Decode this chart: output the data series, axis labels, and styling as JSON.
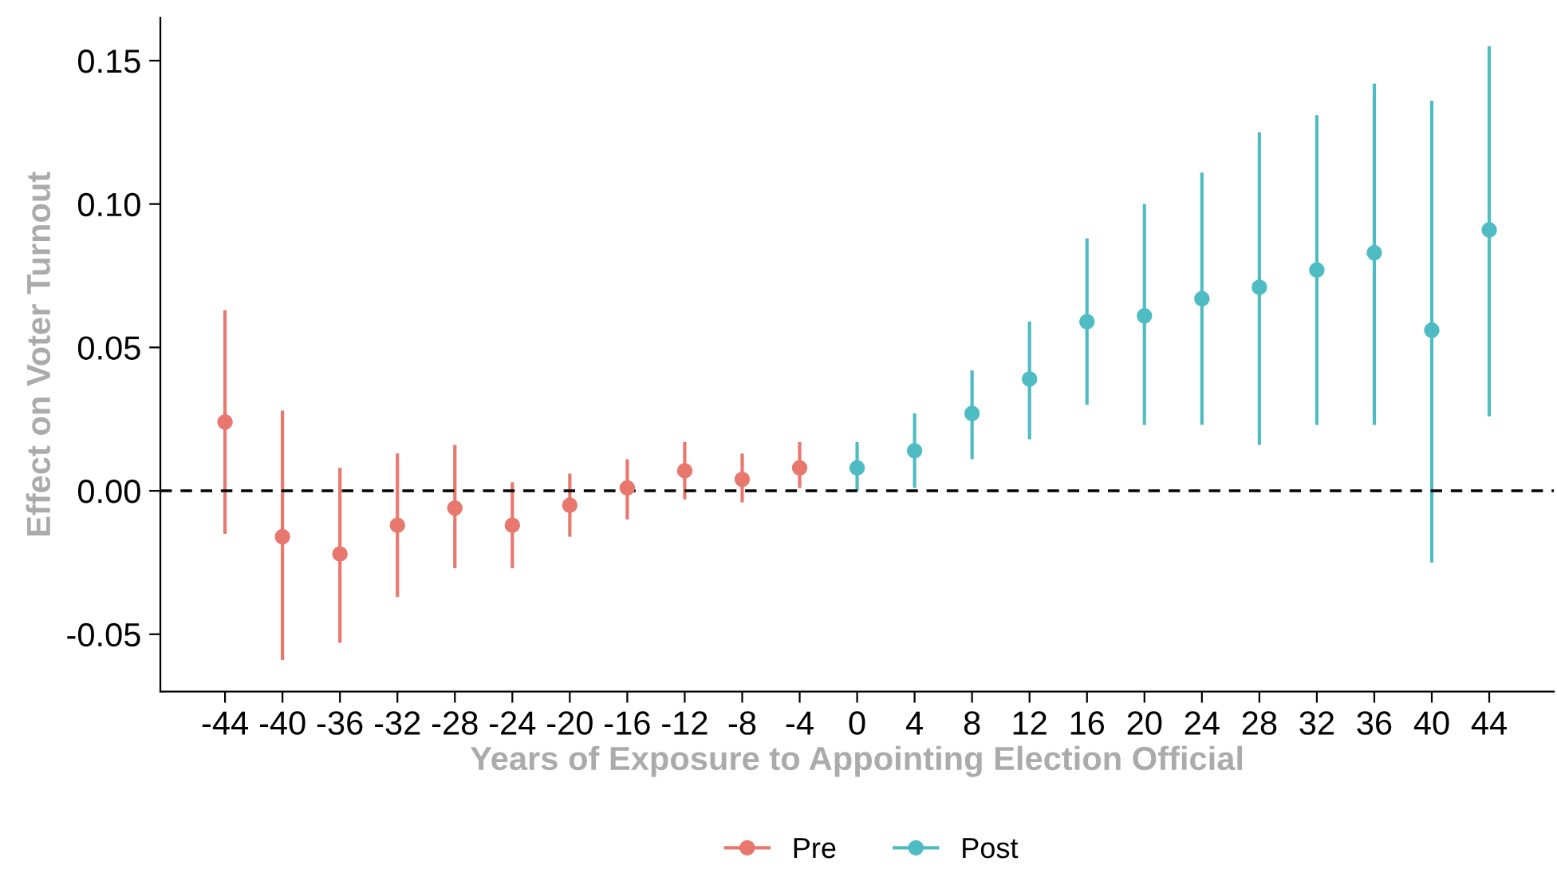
{
  "chart_data": {
    "type": "scatter",
    "xlabel": "Years of Exposure to Appointing Election Official",
    "ylabel": "Effect on Voter Turnout",
    "series": [
      {
        "name": "Pre",
        "color": "#e8776e",
        "x": [
          -44,
          -40,
          -36,
          -32,
          -28,
          -24,
          -20,
          -16,
          -12,
          -8,
          -4
        ],
        "values": [
          0.024,
          -0.016,
          -0.022,
          -0.012,
          -0.006,
          -0.012,
          -0.005,
          0.001,
          0.007,
          0.004,
          0.008
        ],
        "errors": [
          [
            -0.015,
            0.063
          ],
          [
            -0.059,
            0.028
          ],
          [
            -0.053,
            0.008
          ],
          [
            -0.037,
            0.013
          ],
          [
            -0.027,
            0.016
          ],
          [
            -0.027,
            0.003
          ],
          [
            -0.016,
            0.006
          ],
          [
            -0.01,
            0.011
          ],
          [
            -0.003,
            0.017
          ],
          [
            -0.004,
            0.013
          ],
          [
            0.001,
            0.017
          ]
        ]
      },
      {
        "name": "Post",
        "color": "#4fbcc4",
        "x": [
          0,
          4,
          8,
          12,
          16,
          20,
          24,
          28,
          32,
          36,
          40,
          44
        ],
        "values": [
          0.008,
          0.014,
          0.027,
          0.039,
          0.059,
          0.061,
          0.067,
          0.071,
          0.077,
          0.083,
          0.056,
          0.091
        ],
        "errors": [
          [
            0.0,
            0.017
          ],
          [
            0.001,
            0.027
          ],
          [
            0.011,
            0.042
          ],
          [
            0.018,
            0.059
          ],
          [
            0.03,
            0.088
          ],
          [
            0.023,
            0.1
          ],
          [
            0.023,
            0.111
          ],
          [
            0.016,
            0.125
          ],
          [
            0.023,
            0.131
          ],
          [
            0.023,
            0.142
          ],
          [
            -0.025,
            0.136
          ],
          [
            0.026,
            0.155
          ]
        ]
      }
    ],
    "xlim": [
      -48.5,
      48.5
    ],
    "xticks": [
      -44,
      -40,
      -36,
      -32,
      -28,
      -24,
      -20,
      -16,
      -12,
      -8,
      -4,
      0,
      4,
      8,
      12,
      16,
      20,
      24,
      28,
      32,
      36,
      40,
      44
    ],
    "ylim": [
      -0.07,
      0.165
    ],
    "yticks": [
      {
        "value": -0.05,
        "label": "-0.05"
      },
      {
        "value": 0,
        "label": "0.00"
      },
      {
        "value": 0.05,
        "label": "0.05"
      },
      {
        "value": 0.1,
        "label": "0.10"
      },
      {
        "value": 0.15,
        "label": "0.15"
      }
    ],
    "ref_lines": [
      {
        "axis": "y",
        "value": 0,
        "label": null,
        "color": "#000000",
        "line_style": "dashed"
      }
    ],
    "marker": "circle",
    "legend": "bottom",
    "grid": false
  }
}
